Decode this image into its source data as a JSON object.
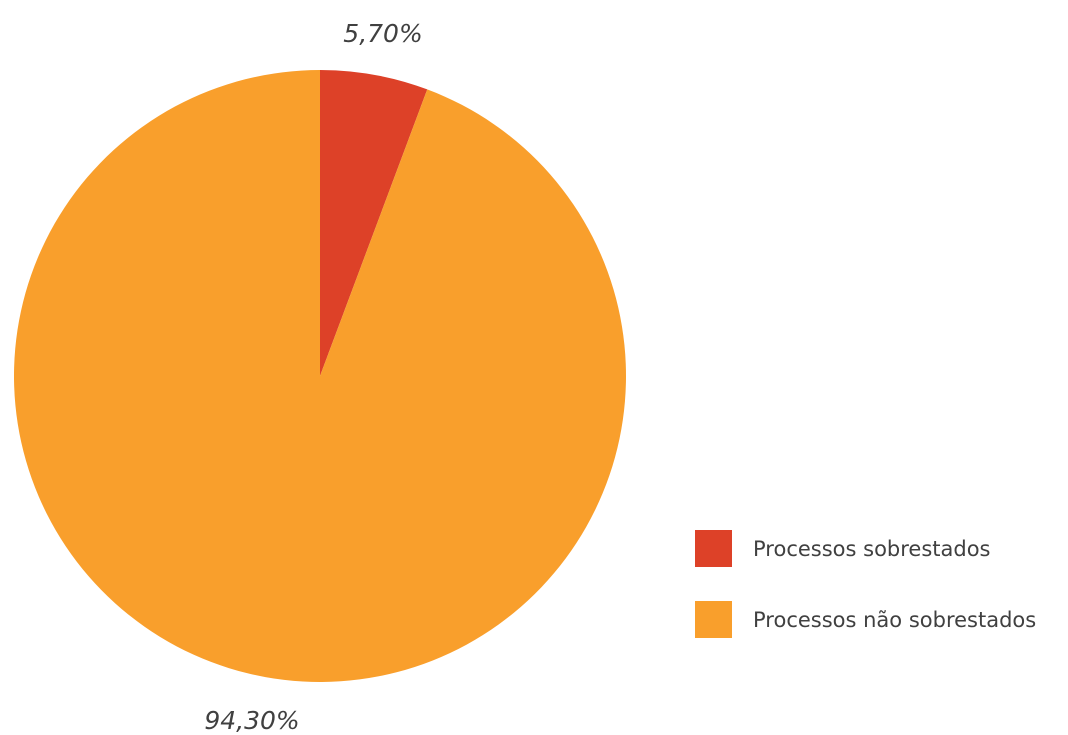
{
  "chart_data": {
    "type": "pie",
    "categories": [
      "Processos sobrestados",
      "Processos não sobrestados"
    ],
    "values": [
      5.7,
      94.3
    ],
    "data_labels": [
      "5,70%",
      "94,30%"
    ],
    "colors": [
      "#DD4128",
      "#F99F2C"
    ],
    "legend": {
      "position": "bottom-right",
      "entries": [
        "Processos sobrestados",
        "Processos não sobrestados"
      ]
    },
    "start_angle": "12 o'clock",
    "direction": "clockwise"
  }
}
